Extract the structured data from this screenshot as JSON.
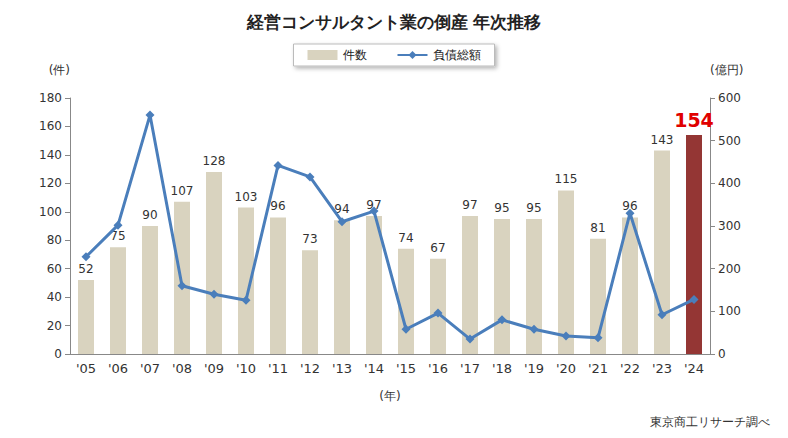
{
  "chart_data": {
    "type": "bar",
    "title": "経営コンサルタント業の倒産 年次推移",
    "categories": [
      "'05",
      "'06",
      "'07",
      "'08",
      "'09",
      "'10",
      "'11",
      "'12",
      "'13",
      "'14",
      "'15",
      "'16",
      "'17",
      "'18",
      "'19",
      "'20",
      "'21",
      "'22",
      "'23",
      "'24"
    ],
    "series": [
      {
        "name": "件数",
        "type": "bar",
        "color": "#d9d3bf",
        "colors": [
          "#d9d3bf",
          "#d9d3bf",
          "#d9d3bf",
          "#d9d3bf",
          "#d9d3bf",
          "#d9d3bf",
          "#d9d3bf",
          "#d9d3bf",
          "#d9d3bf",
          "#d9d3bf",
          "#d9d3bf",
          "#d9d3bf",
          "#d9d3bf",
          "#d9d3bf",
          "#d9d3bf",
          "#d9d3bf",
          "#d9d3bf",
          "#d9d3bf",
          "#d9d3bf",
          "#943634"
        ],
        "values": [
          52,
          75,
          90,
          107,
          128,
          103,
          96,
          73,
          94,
          97,
          74,
          67,
          97,
          95,
          95,
          115,
          81,
          96,
          143,
          154
        ],
        "data_labels": true
      },
      {
        "name": "負債総額",
        "type": "line",
        "axis": "y2",
        "color": "#4a7ebb",
        "marker": "diamond",
        "line_style": "solid",
        "values": [
          228,
          302,
          560,
          160,
          140,
          126,
          442,
          415,
          310,
          335,
          58,
          96,
          35,
          80,
          58,
          42,
          38,
          330,
          92,
          128
        ]
      }
    ],
    "ylim": [
      0,
      180
    ],
    "yticks": [
      0,
      20,
      40,
      60,
      80,
      100,
      120,
      140,
      160,
      180
    ],
    "y2lim": [
      0,
      600
    ],
    "y2ticks": [
      0,
      100,
      200,
      300,
      400,
      500,
      600
    ],
    "xlabel": "(年)",
    "ylabel": "(件)",
    "y2label": "(億円)",
    "annotations": [
      "東京商工リサーチ調べ"
    ],
    "legend": "top",
    "grid": false
  }
}
